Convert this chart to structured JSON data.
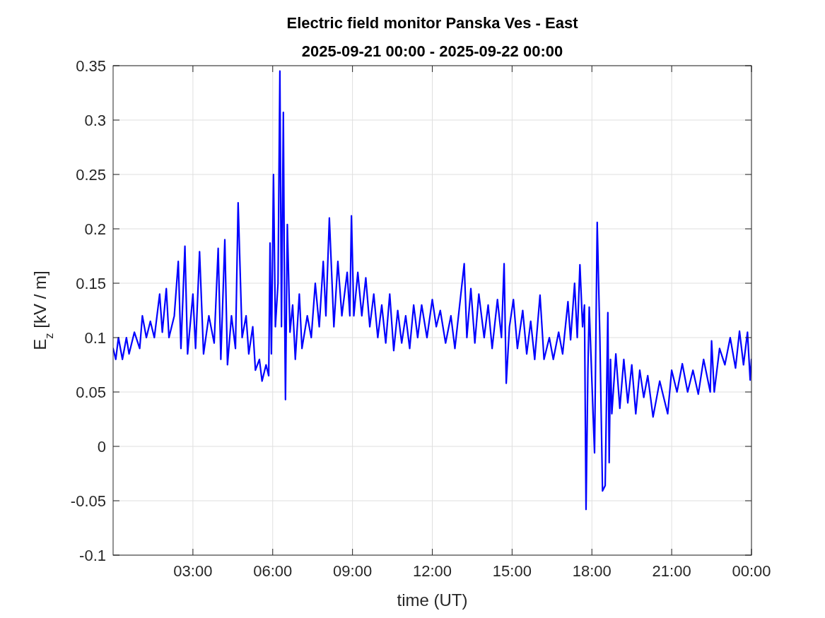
{
  "chart_data": {
    "type": "line",
    "title": "Electric field monitor Panska Ves - East",
    "subtitle": "2025-09-21 00:00 - 2025-09-22 00:00",
    "xlabel": "time (UT)",
    "ylabel": "E$_{z}$ [kV / m]",
    "xlim": [
      0,
      24
    ],
    "xticks": [
      {
        "value": 3,
        "label": "03:00"
      },
      {
        "value": 6,
        "label": "06:00"
      },
      {
        "value": 9,
        "label": "09:00"
      },
      {
        "value": 12,
        "label": "12:00"
      },
      {
        "value": 15,
        "label": "15:00"
      },
      {
        "value": 18,
        "label": "18:00"
      },
      {
        "value": 21,
        "label": "21:00"
      },
      {
        "value": 24,
        "label": "00:00"
      }
    ],
    "ylim": [
      -0.1,
      0.35
    ],
    "yticks": [
      -0.1,
      -0.05,
      0,
      0.05,
      0.1,
      0.15,
      0.2,
      0.25,
      0.3,
      0.35
    ],
    "grid": true,
    "marker": "none",
    "line_style": "solid",
    "series": [
      {
        "color": "#0000ff",
        "x": [
          0.0,
          0.1,
          0.2,
          0.35,
          0.5,
          0.6,
          0.8,
          1.0,
          1.1,
          1.25,
          1.4,
          1.55,
          1.75,
          1.85,
          2.0,
          2.1,
          2.3,
          2.45,
          2.55,
          2.7,
          2.8,
          3.0,
          3.1,
          3.25,
          3.4,
          3.6,
          3.8,
          3.95,
          4.05,
          4.2,
          4.3,
          4.45,
          4.6,
          4.7,
          4.85,
          5.0,
          5.1,
          5.25,
          5.35,
          5.5,
          5.6,
          5.75,
          5.85,
          5.9,
          5.95,
          6.03,
          6.1,
          6.2,
          6.27,
          6.33,
          6.4,
          6.45,
          6.48,
          6.55,
          6.65,
          6.75,
          6.85,
          7.0,
          7.1,
          7.3,
          7.45,
          7.6,
          7.75,
          7.9,
          8.0,
          8.13,
          8.3,
          8.45,
          8.6,
          8.8,
          8.9,
          8.96,
          9.05,
          9.2,
          9.35,
          9.5,
          9.65,
          9.8,
          9.95,
          10.1,
          10.25,
          10.4,
          10.55,
          10.7,
          10.85,
          11.0,
          11.15,
          11.3,
          11.45,
          11.6,
          11.8,
          12.0,
          12.15,
          12.3,
          12.5,
          12.7,
          12.85,
          13.2,
          13.3,
          13.45,
          13.6,
          13.75,
          13.95,
          14.1,
          14.25,
          14.45,
          14.6,
          14.7,
          14.78,
          14.9,
          15.05,
          15.2,
          15.4,
          15.55,
          15.7,
          15.85,
          16.05,
          16.2,
          16.4,
          16.55,
          16.75,
          16.9,
          17.1,
          17.2,
          17.35,
          17.45,
          17.55,
          17.65,
          17.72,
          17.78,
          17.85,
          17.9,
          18.0,
          18.1,
          18.2,
          18.3,
          18.4,
          18.5,
          18.6,
          18.65,
          18.7,
          18.75,
          18.9,
          19.05,
          19.2,
          19.35,
          19.5,
          19.65,
          19.8,
          19.95,
          20.1,
          20.3,
          20.55,
          20.7,
          20.85,
          21.0,
          21.2,
          21.4,
          21.6,
          21.8,
          22.0,
          22.2,
          22.45,
          22.5,
          22.6,
          22.8,
          23.0,
          23.2,
          23.4,
          23.55,
          23.7,
          23.85,
          23.95,
          24.0
        ],
        "values": [
          0.09,
          0.08,
          0.1,
          0.08,
          0.1,
          0.085,
          0.105,
          0.09,
          0.12,
          0.1,
          0.115,
          0.1,
          0.14,
          0.105,
          0.145,
          0.1,
          0.12,
          0.17,
          0.09,
          0.184,
          0.085,
          0.14,
          0.09,
          0.179,
          0.085,
          0.12,
          0.095,
          0.182,
          0.08,
          0.19,
          0.075,
          0.12,
          0.09,
          0.224,
          0.1,
          0.12,
          0.085,
          0.11,
          0.07,
          0.08,
          0.06,
          0.075,
          0.065,
          0.187,
          0.085,
          0.25,
          0.11,
          0.15,
          0.345,
          0.11,
          0.307,
          0.12,
          0.043,
          0.204,
          0.105,
          0.13,
          0.08,
          0.14,
          0.09,
          0.12,
          0.1,
          0.15,
          0.11,
          0.17,
          0.12,
          0.21,
          0.11,
          0.17,
          0.12,
          0.16,
          0.12,
          0.212,
          0.12,
          0.16,
          0.12,
          0.155,
          0.11,
          0.14,
          0.1,
          0.13,
          0.095,
          0.14,
          0.088,
          0.125,
          0.095,
          0.12,
          0.09,
          0.13,
          0.1,
          0.13,
          0.1,
          0.135,
          0.11,
          0.125,
          0.095,
          0.12,
          0.09,
          0.168,
          0.1,
          0.145,
          0.095,
          0.14,
          0.1,
          0.13,
          0.09,
          0.135,
          0.1,
          0.168,
          0.058,
          0.11,
          0.135,
          0.09,
          0.125,
          0.085,
          0.115,
          0.08,
          0.139,
          0.08,
          0.1,
          0.08,
          0.105,
          0.085,
          0.133,
          0.098,
          0.15,
          0.1,
          0.167,
          0.11,
          0.13,
          -0.058,
          0.07,
          0.128,
          0.06,
          -0.006,
          0.206,
          0.1,
          -0.041,
          -0.036,
          0.123,
          -0.015,
          0.08,
          0.03,
          0.085,
          0.035,
          0.08,
          0.04,
          0.075,
          0.03,
          0.07,
          0.045,
          0.065,
          0.027,
          0.06,
          0.045,
          0.03,
          0.07,
          0.05,
          0.076,
          0.05,
          0.07,
          0.048,
          0.08,
          0.05,
          0.097,
          0.05,
          0.09,
          0.075,
          0.1,
          0.072,
          0.106,
          0.075,
          0.105,
          0.061,
          0.08
        ]
      }
    ]
  }
}
